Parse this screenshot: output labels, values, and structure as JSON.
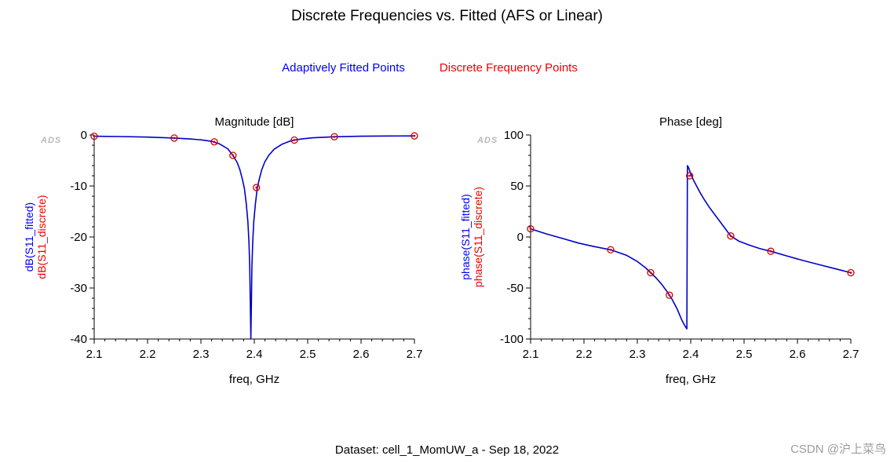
{
  "page": {
    "title": "Discrete Frequencies vs. Fitted (AFS or Linear)",
    "footer": "Dataset: cell_1_MomUW_a - Sep 18, 2022",
    "watermark": "CSDN @沪上菜鸟"
  },
  "legend": {
    "items": [
      {
        "label": "Adaptively Fitted Points",
        "color": "#0000ee"
      },
      {
        "label": "Discrete Frequency Points",
        "color": "#ee0000"
      }
    ]
  },
  "colors": {
    "fitted_line": "#0000cc",
    "discrete_marker": "#cc0000",
    "axis": "#000000",
    "ads_watermark": "#b9b9b9"
  },
  "chart_data": [
    {
      "type": "line",
      "title": "Magnitude [dB]",
      "xlabel": "freq, GHz",
      "corner_logo": "ADS",
      "xlim": [
        2.1,
        2.7
      ],
      "ylim": [
        -40,
        0
      ],
      "xticks": [
        "2.1",
        "2.2",
        "2.3",
        "2.4",
        "2.5",
        "2.6",
        "2.7"
      ],
      "yticks": [
        "0",
        "-10",
        "-20",
        "-30",
        "-40"
      ],
      "x_minor_step": 0.02,
      "y_minor_step": 2,
      "grid": false,
      "ylabels": [
        {
          "text": "dB(S11_fitted)",
          "color": "#0000ee"
        },
        {
          "text": "dB(S11_discrete)",
          "color": "#ee0000"
        }
      ],
      "series": [
        {
          "name": "S11_fitted",
          "kind": "line",
          "color": "#0000cc",
          "points": [
            [
              2.1,
              -0.25
            ],
            [
              2.15,
              -0.3
            ],
            [
              2.2,
              -0.42
            ],
            [
              2.25,
              -0.6
            ],
            [
              2.28,
              -0.78
            ],
            [
              2.3,
              -0.95
            ],
            [
              2.32,
              -1.25
            ],
            [
              2.335,
              -1.75
            ],
            [
              2.35,
              -2.7
            ],
            [
              2.36,
              -4.0
            ],
            [
              2.368,
              -5.4
            ],
            [
              2.373,
              -6.8
            ],
            [
              2.378,
              -8.8
            ],
            [
              2.3815,
              -10.5
            ],
            [
              2.385,
              -13.5
            ],
            [
              2.388,
              -17.0
            ],
            [
              2.39,
              -21.0
            ],
            [
              2.3915,
              -26.0
            ],
            [
              2.3925,
              -33.0
            ],
            [
              2.3935,
              -40.0
            ],
            [
              2.3945,
              -33.0
            ],
            [
              2.3955,
              -26.0
            ],
            [
              2.397,
              -21.0
            ],
            [
              2.399,
              -17.0
            ],
            [
              2.402,
              -13.5
            ],
            [
              2.4055,
              -10.5
            ],
            [
              2.409,
              -8.8
            ],
            [
              2.414,
              -6.8
            ],
            [
              2.4195,
              -5.3
            ],
            [
              2.427,
              -4.0
            ],
            [
              2.437,
              -2.8
            ],
            [
              2.452,
              -1.8
            ],
            [
              2.467,
              -1.2
            ],
            [
              2.475,
              -1.0
            ],
            [
              2.49,
              -0.75
            ],
            [
              2.51,
              -0.55
            ],
            [
              2.55,
              -0.35
            ],
            [
              2.6,
              -0.25
            ],
            [
              2.65,
              -0.2
            ],
            [
              2.7,
              -0.18
            ]
          ]
        },
        {
          "name": "S11_discrete",
          "kind": "scatter",
          "color": "#cc0000",
          "points": [
            [
              2.1,
              -0.25
            ],
            [
              2.25,
              -0.6
            ],
            [
              2.325,
              -1.35
            ],
            [
              2.36,
              -4.0
            ],
            [
              2.404,
              -10.3
            ],
            [
              2.475,
              -1.0
            ],
            [
              2.55,
              -0.35
            ],
            [
              2.7,
              -0.18
            ]
          ]
        }
      ]
    },
    {
      "type": "line",
      "title": "Phase [deg]",
      "xlabel": "freq, GHz",
      "corner_logo": "ADS",
      "xlim": [
        2.1,
        2.7
      ],
      "ylim": [
        -100,
        100
      ],
      "xticks": [
        "2.1",
        "2.2",
        "2.3",
        "2.4",
        "2.5",
        "2.6",
        "2.7"
      ],
      "yticks": [
        "100",
        "50",
        "0",
        "-50",
        "-100"
      ],
      "x_minor_step": 0.02,
      "y_minor_step": 10,
      "grid": false,
      "ylabels": [
        {
          "text": "phase(S11_fitted)",
          "color": "#0000ee"
        },
        {
          "text": "phase(S11_discrete)",
          "color": "#ee0000"
        }
      ],
      "series": [
        {
          "name": "phase_S11_fitted",
          "kind": "line",
          "color": "#0000cc",
          "points": [
            [
              2.1,
              8
            ],
            [
              2.13,
              3
            ],
            [
              2.16,
              -1.5
            ],
            [
              2.19,
              -6
            ],
            [
              2.22,
              -9.5
            ],
            [
              2.25,
              -12.5
            ],
            [
              2.28,
              -18
            ],
            [
              2.3,
              -24
            ],
            [
              2.315,
              -30
            ],
            [
              2.325,
              -35
            ],
            [
              2.335,
              -40
            ],
            [
              2.345,
              -46
            ],
            [
              2.355,
              -53
            ],
            [
              2.36,
              -57
            ],
            [
              2.365,
              -61
            ],
            [
              2.37,
              -66
            ],
            [
              2.375,
              -71
            ],
            [
              2.379,
              -76
            ],
            [
              2.383,
              -81
            ],
            [
              2.386,
              -84
            ],
            [
              2.389,
              -87
            ],
            [
              2.3915,
              -89
            ],
            [
              2.3928,
              -90
            ],
            [
              2.3938,
              70
            ],
            [
              2.396,
              68
            ],
            [
              2.4,
              62
            ],
            [
              2.405,
              56
            ],
            [
              2.41,
              51
            ],
            [
              2.417,
              44
            ],
            [
              2.425,
              37
            ],
            [
              2.435,
              29
            ],
            [
              2.445,
              22
            ],
            [
              2.455,
              15
            ],
            [
              2.465,
              8
            ],
            [
              2.475,
              1
            ],
            [
              2.49,
              -4
            ],
            [
              2.51,
              -8
            ],
            [
              2.53,
              -11.5
            ],
            [
              2.55,
              -14
            ],
            [
              2.58,
              -18.5
            ],
            [
              2.61,
              -23
            ],
            [
              2.64,
              -27
            ],
            [
              2.67,
              -31
            ],
            [
              2.7,
              -35
            ]
          ]
        },
        {
          "name": "phase_S11_discrete",
          "kind": "scatter",
          "color": "#cc0000",
          "points": [
            [
              2.1,
              8
            ],
            [
              2.25,
              -12.5
            ],
            [
              2.325,
              -35
            ],
            [
              2.36,
              -57
            ],
            [
              2.398,
              60
            ],
            [
              2.475,
              1
            ],
            [
              2.55,
              -14
            ],
            [
              2.7,
              -35
            ]
          ]
        }
      ]
    }
  ]
}
